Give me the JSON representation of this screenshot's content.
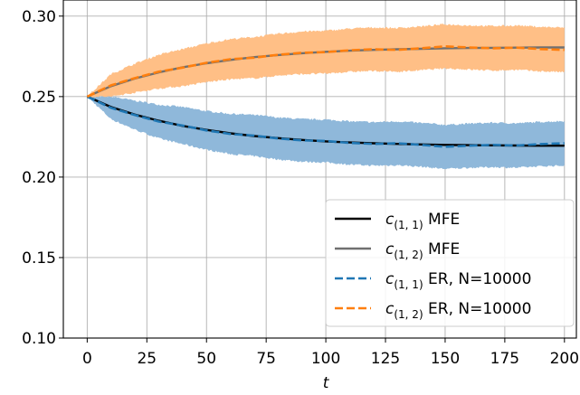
{
  "chart_data": {
    "type": "line",
    "title": "",
    "xlabel": "t",
    "ylabel": "",
    "xlim": [
      -10,
      205
    ],
    "ylim": [
      0.1,
      0.31
    ],
    "xticks": [
      0,
      25,
      50,
      75,
      100,
      125,
      150,
      175,
      200
    ],
    "yticks": [
      0.1,
      0.15,
      0.2,
      0.25,
      0.3
    ],
    "xtick_labels": [
      "0",
      "25",
      "50",
      "75",
      "100",
      "125",
      "150",
      "175",
      "200"
    ],
    "ytick_labels": [
      "0.10",
      "0.15",
      "0.20",
      "0.25",
      "0.30"
    ],
    "grid": true,
    "legend_position": "bottom-right",
    "x": [
      0,
      10,
      20,
      30,
      40,
      50,
      60,
      70,
      80,
      90,
      100,
      110,
      120,
      130,
      140,
      150,
      160,
      170,
      180,
      190,
      200
    ],
    "series": [
      {
        "name": "c(1,1) MFE",
        "color": "#000000",
        "style": "solid",
        "values": [
          0.25,
          0.2435,
          0.2388,
          0.235,
          0.2318,
          0.2293,
          0.2272,
          0.2255,
          0.2242,
          0.2231,
          0.2222,
          0.2215,
          0.221,
          0.2206,
          0.2203,
          0.22,
          0.2198,
          0.2197,
          0.2196,
          0.2195,
          0.2195
        ]
      },
      {
        "name": "c(1,2) MFE",
        "color": "#707070",
        "style": "solid",
        "values": [
          0.25,
          0.2565,
          0.2612,
          0.265,
          0.2682,
          0.2707,
          0.2728,
          0.2745,
          0.2758,
          0.2769,
          0.2778,
          0.2785,
          0.279,
          0.2794,
          0.2797,
          0.28,
          0.2802,
          0.2803,
          0.2804,
          0.2805,
          0.2805
        ]
      },
      {
        "name": "c(1,1) ER, N=10000",
        "color": "#1f77b4",
        "style": "dashed",
        "band_color": "#8fb8da",
        "values": [
          0.25,
          0.243,
          0.2385,
          0.2345,
          0.232,
          0.229,
          0.2268,
          0.2258,
          0.224,
          0.2228,
          0.2224,
          0.2212,
          0.2206,
          0.221,
          0.22,
          0.2188,
          0.2195,
          0.22,
          0.2196,
          0.2205,
          0.221
        ],
        "band_halfwidth": [
          0.0,
          0.007,
          0.009,
          0.0105,
          0.0115,
          0.012,
          0.0125,
          0.0128,
          0.013,
          0.0132,
          0.0133,
          0.0134,
          0.0135,
          0.0136,
          0.0136,
          0.0137,
          0.0137,
          0.0138,
          0.0138,
          0.0138,
          0.0138
        ]
      },
      {
        "name": "c(1,2) ER, N=10000",
        "color": "#ff7f0e",
        "style": "dashed",
        "band_color": "#ffbf86",
        "values": [
          0.25,
          0.257,
          0.2615,
          0.2655,
          0.268,
          0.271,
          0.2732,
          0.2742,
          0.276,
          0.2772,
          0.2776,
          0.2788,
          0.2794,
          0.279,
          0.28,
          0.2812,
          0.2805,
          0.28,
          0.2804,
          0.2795,
          0.279
        ],
        "band_halfwidth": [
          0.0,
          0.007,
          0.009,
          0.0105,
          0.0115,
          0.012,
          0.0125,
          0.0128,
          0.013,
          0.0132,
          0.0133,
          0.0134,
          0.0135,
          0.0136,
          0.0136,
          0.0137,
          0.0137,
          0.0138,
          0.0138,
          0.0138,
          0.0138
        ]
      }
    ],
    "legend": [
      {
        "main": "c",
        "sub": "(1, 1)",
        "rest": " MFE",
        "color": "#000000",
        "style": "solid"
      },
      {
        "main": "c",
        "sub": "(1, 2)",
        "rest": " MFE",
        "color": "#707070",
        "style": "solid"
      },
      {
        "main": "c",
        "sub": "(1, 1)",
        "rest": " ER, N=10000",
        "color": "#1f77b4",
        "style": "dashed"
      },
      {
        "main": "c",
        "sub": "(1, 2)",
        "rest": " ER, N=10000",
        "color": "#ff7f0e",
        "style": "dashed"
      }
    ]
  }
}
